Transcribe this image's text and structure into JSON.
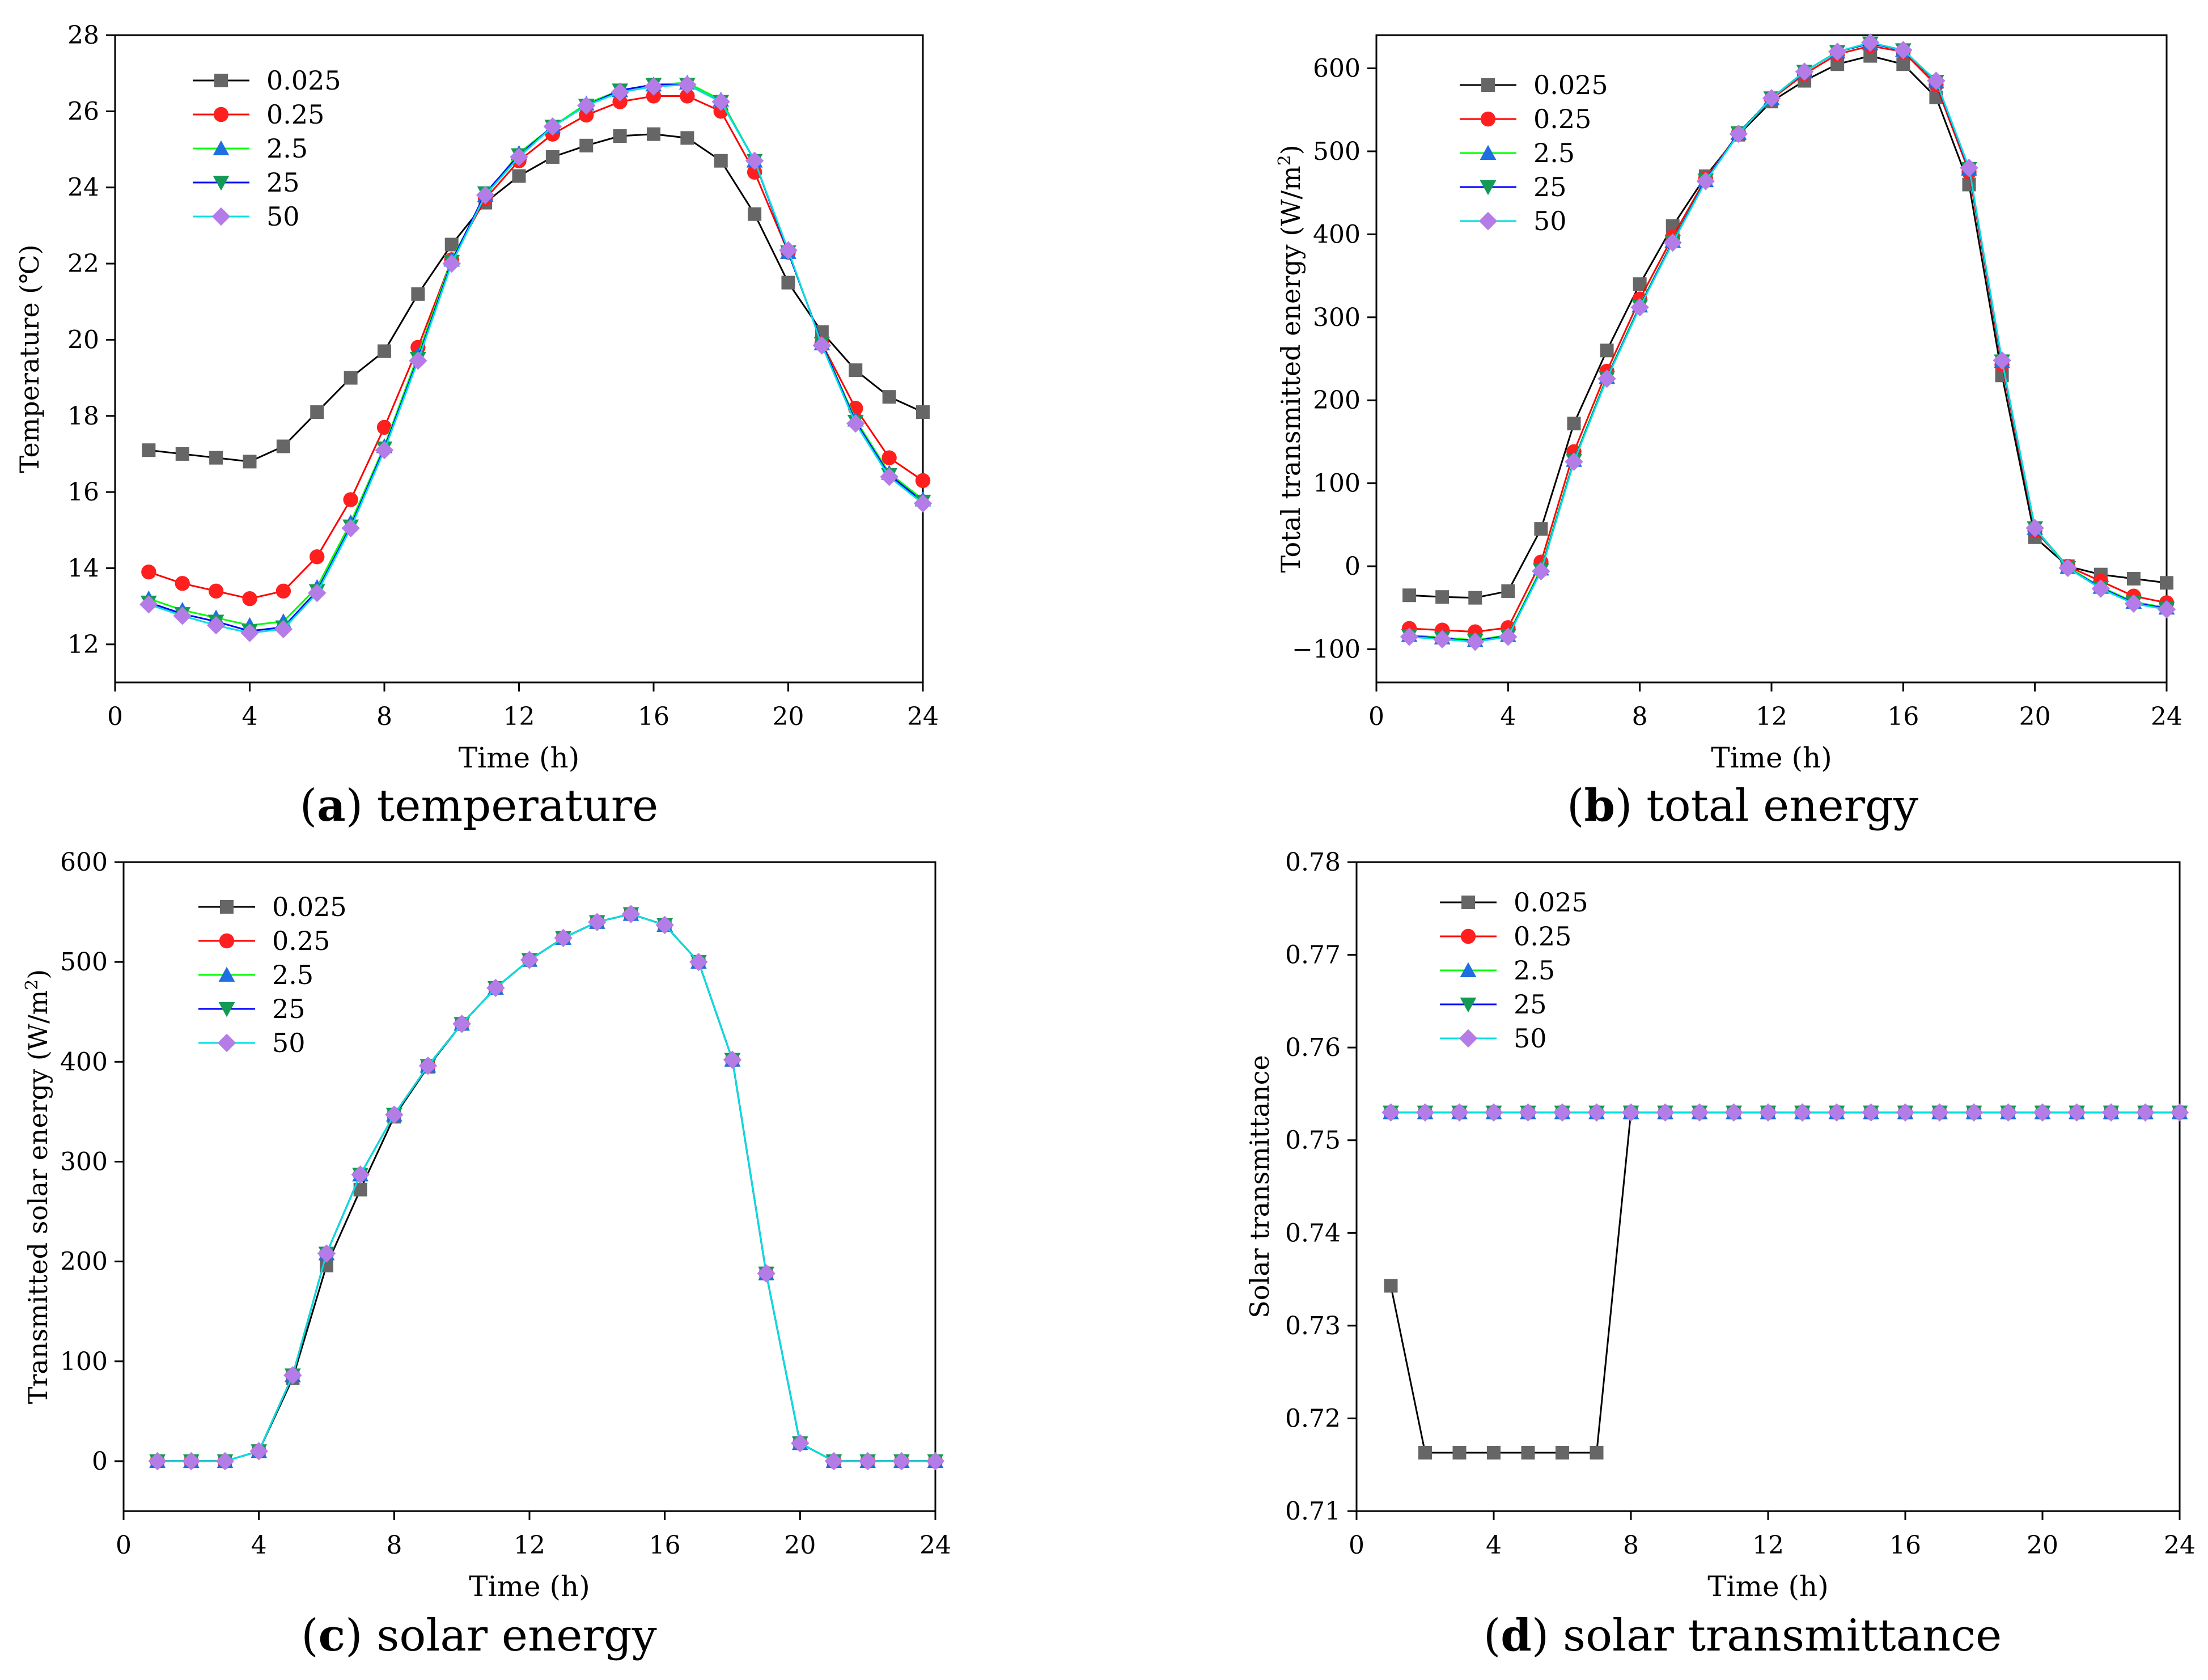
{
  "chart_data": [
    {
      "id": "a",
      "type": "line",
      "caption_letter": "a",
      "caption_text": "temperature",
      "xlabel": "Time (h)",
      "ylabel": "Temperature (℃)",
      "xlim": [
        0,
        24
      ],
      "ylim": [
        11,
        28
      ],
      "xticks": [
        0,
        4,
        8,
        12,
        16,
        20,
        24
      ],
      "yticks": [
        12,
        14,
        16,
        18,
        20,
        22,
        24,
        26,
        28
      ],
      "legend": "top-left",
      "x": [
        1,
        2,
        3,
        4,
        5,
        6,
        7,
        8,
        9,
        10,
        11,
        12,
        13,
        14,
        15,
        16,
        17,
        18,
        19,
        20,
        21,
        22,
        23,
        24
      ],
      "series": [
        {
          "name": "0.025",
          "values": [
            17.1,
            17.0,
            16.9,
            16.8,
            17.2,
            18.1,
            19.0,
            19.7,
            21.2,
            22.5,
            23.6,
            24.3,
            24.8,
            25.1,
            25.35,
            25.4,
            25.3,
            24.7,
            23.3,
            21.5,
            20.2,
            19.2,
            18.5,
            18.1
          ]
        },
        {
          "name": "0.25",
          "values": [
            13.9,
            13.6,
            13.4,
            13.2,
            13.4,
            14.3,
            15.8,
            17.7,
            19.8,
            22.1,
            23.7,
            24.7,
            25.4,
            25.9,
            26.25,
            26.4,
            26.4,
            26.0,
            24.4,
            22.3,
            19.9,
            18.2,
            16.9,
            16.3
          ]
        },
        {
          "name": "2.5",
          "values": [
            13.2,
            12.9,
            12.7,
            12.5,
            12.6,
            13.5,
            15.2,
            17.2,
            19.6,
            22.1,
            23.8,
            24.9,
            25.6,
            26.2,
            26.55,
            26.7,
            26.75,
            26.3,
            24.7,
            22.3,
            19.9,
            17.9,
            16.5,
            15.8
          ]
        },
        {
          "name": "25",
          "values": [
            13.1,
            12.8,
            12.6,
            12.35,
            12.45,
            13.4,
            15.1,
            17.15,
            19.5,
            22.05,
            23.85,
            24.85,
            25.6,
            26.15,
            26.55,
            26.7,
            26.7,
            26.25,
            24.7,
            22.3,
            19.9,
            17.85,
            16.45,
            15.75
          ]
        },
        {
          "name": "50",
          "values": [
            13.05,
            12.75,
            12.5,
            12.3,
            12.4,
            13.35,
            15.05,
            17.1,
            19.45,
            22.0,
            23.8,
            24.8,
            25.6,
            26.15,
            26.5,
            26.65,
            26.7,
            26.25,
            24.7,
            22.35,
            19.85,
            17.8,
            16.4,
            15.7
          ]
        }
      ]
    },
    {
      "id": "b",
      "type": "line",
      "caption_letter": "b",
      "caption_text": "total energy",
      "xlabel": "Time (h)",
      "ylabel": "Total transmitted energy (W/m2)",
      "xlim": [
        0,
        24
      ],
      "ylim": [
        -140,
        640
      ],
      "xticks": [
        0,
        4,
        8,
        12,
        16,
        20,
        24
      ],
      "yticks": [
        -100,
        0,
        100,
        200,
        300,
        400,
        500,
        600
      ],
      "legend": "top-left",
      "x": [
        1,
        2,
        3,
        4,
        5,
        6,
        7,
        8,
        9,
        10,
        11,
        12,
        13,
        14,
        15,
        16,
        17,
        18,
        19,
        20,
        21,
        22,
        23,
        24
      ],
      "series": [
        {
          "name": "0.025",
          "values": [
            -35,
            -37,
            -38,
            -30,
            45,
            172,
            260,
            340,
            410,
            470,
            520,
            560,
            585,
            605,
            615,
            605,
            565,
            460,
            230,
            35,
            0,
            -10,
            -15,
            -20
          ]
        },
        {
          "name": "0.25",
          "values": [
            -75,
            -77,
            -79,
            -74,
            5,
            138,
            235,
            322,
            397,
            467,
            522,
            563,
            593,
            617,
            627,
            620,
            580,
            475,
            243,
            43,
            0,
            -18,
            -36,
            -44
          ]
        },
        {
          "name": "2.5",
          "values": [
            -83,
            -86,
            -89,
            -83,
            -3,
            128,
            228,
            314,
            392,
            465,
            522,
            564,
            596,
            620,
            630,
            622,
            584,
            479,
            247,
            46,
            -1,
            -25,
            -43,
            -50
          ]
        },
        {
          "name": "25",
          "values": [
            -84,
            -87,
            -90,
            -84,
            -5,
            127,
            227,
            313,
            391,
            465,
            522,
            564,
            596,
            620,
            630,
            622,
            584,
            479,
            247,
            46,
            -2,
            -26,
            -44,
            -51
          ]
        },
        {
          "name": "50",
          "values": [
            -85,
            -88,
            -91,
            -85,
            -6,
            126,
            226,
            312,
            390,
            464,
            521,
            564,
            596,
            620,
            631,
            622,
            585,
            480,
            248,
            46,
            -2,
            -27,
            -45,
            -52
          ]
        }
      ]
    },
    {
      "id": "c",
      "type": "line",
      "caption_letter": "c",
      "caption_text": "solar energy",
      "xlabel": "Time (h)",
      "ylabel": "Transmitted solar energy (W/m2)",
      "xlim": [
        0,
        24
      ],
      "ylim": [
        -50,
        600
      ],
      "xticks": [
        0,
        4,
        8,
        12,
        16,
        20,
        24
      ],
      "yticks": [
        0,
        100,
        200,
        300,
        400,
        500,
        600
      ],
      "legend": "top-left",
      "x": [
        1,
        2,
        3,
        4,
        5,
        6,
        7,
        8,
        9,
        10,
        11,
        12,
        13,
        14,
        15,
        16,
        17,
        18,
        19,
        20,
        21,
        22,
        23,
        24
      ],
      "series": [
        {
          "name": "0.025",
          "values": [
            0,
            0,
            0,
            10,
            83,
            196,
            272,
            345,
            395,
            438,
            474,
            502,
            524,
            540,
            548,
            537,
            500,
            402,
            188,
            18,
            0,
            0,
            0,
            0
          ]
        },
        {
          "name": "0.25",
          "values": [
            0,
            0,
            0,
            10,
            86,
            208,
            287,
            347,
            396,
            438,
            474,
            502,
            524,
            540,
            548,
            537,
            500,
            402,
            188,
            18,
            0,
            0,
            0,
            0
          ]
        },
        {
          "name": "2.5",
          "values": [
            0,
            0,
            0,
            10,
            86,
            208,
            287,
            347,
            396,
            438,
            474,
            502,
            524,
            540,
            548,
            537,
            500,
            402,
            188,
            18,
            0,
            0,
            0,
            0
          ]
        },
        {
          "name": "25",
          "values": [
            0,
            0,
            0,
            10,
            86,
            208,
            287,
            347,
            396,
            438,
            474,
            502,
            524,
            540,
            548,
            537,
            500,
            402,
            188,
            18,
            0,
            0,
            0,
            0
          ]
        },
        {
          "name": "50",
          "values": [
            0,
            0,
            0,
            10,
            86,
            208,
            287,
            347,
            396,
            438,
            474,
            502,
            524,
            540,
            548,
            537,
            500,
            402,
            188,
            18,
            0,
            0,
            0,
            0
          ]
        }
      ]
    },
    {
      "id": "d",
      "type": "line",
      "caption_letter": "d",
      "caption_text": "solar transmittance",
      "xlabel": "Time (h)",
      "ylabel": "Solar transmittance",
      "xlim": [
        0,
        24
      ],
      "ylim": [
        0.71,
        0.78
      ],
      "xticks": [
        0,
        4,
        8,
        12,
        16,
        20,
        24
      ],
      "yticks": [
        0.71,
        0.72,
        0.73,
        0.74,
        0.75,
        0.76,
        0.77,
        0.78
      ],
      "legend": "top-left",
      "x": [
        1,
        2,
        3,
        4,
        5,
        6,
        7,
        8,
        9,
        10,
        11,
        12,
        13,
        14,
        15,
        16,
        17,
        18,
        19,
        20,
        21,
        22,
        23,
        24
      ],
      "series": [
        {
          "name": "0.025",
          "values": [
            0.7343,
            0.7163,
            0.7163,
            0.7163,
            0.7163,
            0.7163,
            0.7163,
            0.753,
            0.753,
            0.753,
            0.753,
            0.753,
            0.753,
            0.753,
            0.753,
            0.753,
            0.753,
            0.753,
            0.753,
            0.753,
            0.753,
            0.753,
            0.753,
            0.753
          ]
        },
        {
          "name": "0.25",
          "values": [
            0.753,
            0.753,
            0.753,
            0.753,
            0.753,
            0.753,
            0.753,
            0.753,
            0.753,
            0.753,
            0.753,
            0.753,
            0.753,
            0.753,
            0.753,
            0.753,
            0.753,
            0.753,
            0.753,
            0.753,
            0.753,
            0.753,
            0.753,
            0.753
          ]
        },
        {
          "name": "2.5",
          "values": [
            0.753,
            0.753,
            0.753,
            0.753,
            0.753,
            0.753,
            0.753,
            0.753,
            0.753,
            0.753,
            0.753,
            0.753,
            0.753,
            0.753,
            0.753,
            0.753,
            0.753,
            0.753,
            0.753,
            0.753,
            0.753,
            0.753,
            0.753,
            0.753
          ]
        },
        {
          "name": "25",
          "values": [
            0.753,
            0.753,
            0.753,
            0.753,
            0.753,
            0.753,
            0.753,
            0.753,
            0.753,
            0.753,
            0.753,
            0.753,
            0.753,
            0.753,
            0.753,
            0.753,
            0.753,
            0.753,
            0.753,
            0.753,
            0.753,
            0.753,
            0.753,
            0.753
          ]
        },
        {
          "name": "50",
          "values": [
            0.753,
            0.753,
            0.753,
            0.753,
            0.753,
            0.753,
            0.753,
            0.753,
            0.753,
            0.753,
            0.753,
            0.753,
            0.753,
            0.753,
            0.753,
            0.753,
            0.753,
            0.753,
            0.753,
            0.753,
            0.753,
            0.753,
            0.753,
            0.753
          ]
        }
      ]
    }
  ],
  "series_styles": [
    {
      "marker": "square",
      "marker_color": "#666666",
      "line_color": "#000000"
    },
    {
      "marker": "circle",
      "marker_color": "#ff1f1f",
      "line_color": "#ff0000"
    },
    {
      "marker": "triangle-up",
      "marker_color": "#1e6fe0",
      "line_color": "#00ff00"
    },
    {
      "marker": "triangle-down",
      "marker_color": "#139a54",
      "line_color": "#0000ff"
    },
    {
      "marker": "diamond",
      "marker_color": "#b47ce6",
      "line_color": "#00e0e0"
    }
  ]
}
